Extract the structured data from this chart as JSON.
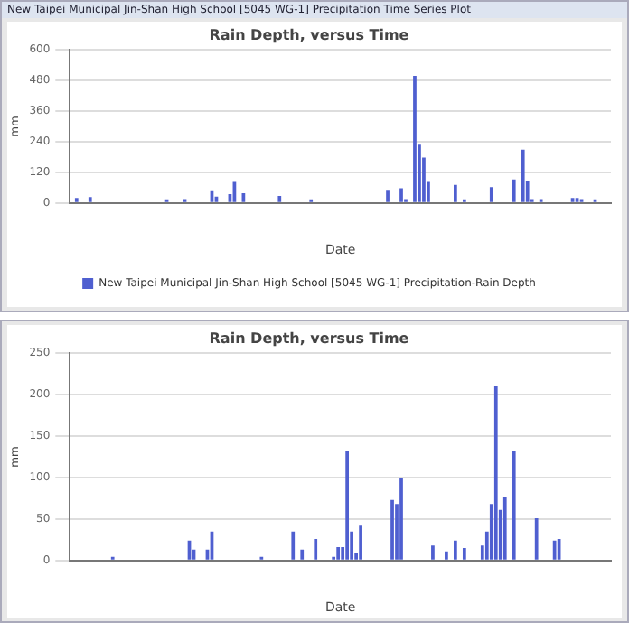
{
  "chart_data": [
    {
      "type": "bar",
      "title": "Rain Depth, versus Time",
      "xlabel": "Date",
      "ylabel": "mm",
      "annotations": [
        "New Taipei Municipal Jin-Shan High School [5045 WG-1] Precipitation Time Series Plot"
      ],
      "categories": [
        null,
        null,
        null,
        null,
        null,
        null,
        null,
        null,
        null,
        null,
        null,
        null,
        null,
        null,
        null,
        null,
        null,
        null,
        null,
        null,
        null,
        null,
        null,
        null,
        null,
        null,
        null,
        null,
        null,
        null,
        null,
        null,
        null,
        null,
        null,
        null,
        null,
        null,
        null,
        null,
        null,
        null,
        null,
        null,
        null,
        null,
        null,
        null,
        null,
        null,
        null,
        null,
        null,
        null,
        null,
        null,
        null,
        null,
        null,
        null,
        null,
        null,
        null,
        null,
        null,
        null,
        null,
        null,
        null,
        null,
        null,
        null,
        null,
        null,
        null,
        null,
        null,
        null,
        null,
        null,
        null,
        null,
        null,
        null,
        null,
        null,
        null,
        null,
        null,
        null,
        null,
        null,
        null,
        null,
        null,
        null,
        null,
        null,
        null,
        null,
        null,
        null,
        null,
        null,
        null,
        null,
        null,
        null,
        null,
        null,
        null,
        null,
        null,
        null,
        null,
        null,
        null,
        null,
        null,
        null
      ],
      "series": [
        {
          "name": "New Taipei Municipal Jin-Shan High School [5045 WG-1] Precipitation-Rain Depth",
          "color": "#4f5fd0",
          "values": [
            null,
            20,
            null,
            null,
            23,
            null,
            null,
            null,
            null,
            null,
            null,
            null,
            null,
            null,
            null,
            null,
            null,
            null,
            null,
            null,
            null,
            10,
            null,
            null,
            null,
            15,
            null,
            null,
            null,
            null,
            null,
            46,
            25,
            null,
            null,
            35,
            82,
            null,
            38,
            null,
            null,
            null,
            null,
            null,
            null,
            null,
            28,
            null,
            null,
            null,
            null,
            null,
            null,
            12,
            null,
            null,
            null,
            null,
            null,
            null,
            null,
            null,
            null,
            null,
            null,
            null,
            null,
            null,
            null,
            null,
            48,
            null,
            null,
            58,
            15,
            null,
            498,
            228,
            178,
            82,
            null,
            null,
            null,
            null,
            null,
            71,
            null,
            12,
            null,
            null,
            null,
            null,
            null,
            62,
            null,
            null,
            null,
            null,
            92,
            null,
            209,
            85,
            15,
            null,
            15,
            null,
            null,
            null,
            null,
            null,
            null,
            20,
            20,
            15,
            null,
            null,
            8,
            null,
            null,
            null
          ]
        }
      ],
      "ylim": [
        0,
        600
      ],
      "yticks": [
        0,
        120,
        240,
        360,
        480,
        600
      ],
      "grid": "y",
      "legend": "bottom"
    },
    {
      "type": "bar",
      "title": "Rain Depth, versus Time",
      "xlabel": "Date",
      "ylabel": "mm",
      "categories": [
        null,
        null,
        null,
        null,
        null,
        null,
        null,
        null,
        null,
        null,
        null,
        null,
        null,
        null,
        null,
        null,
        null,
        null,
        null,
        null,
        null,
        null,
        null,
        null,
        null,
        null,
        null,
        null,
        null,
        null,
        null,
        null,
        null,
        null,
        null,
        null,
        null,
        null,
        null,
        null,
        null,
        null,
        null,
        null,
        null,
        null,
        null,
        null,
        null,
        null,
        null,
        null,
        null,
        null,
        null,
        null,
        null,
        null,
        null,
        null,
        null,
        null,
        null,
        null,
        null,
        null,
        null,
        null,
        null,
        null,
        null,
        null,
        null,
        null,
        null,
        null,
        null,
        null,
        null,
        null,
        null,
        null,
        null,
        null,
        null,
        null,
        null,
        null,
        null,
        null,
        null,
        null,
        null,
        null,
        null,
        null,
        null,
        null,
        null,
        null,
        null,
        null,
        null,
        null,
        null,
        null,
        null,
        null,
        null,
        null,
        null,
        null,
        null,
        null,
        null,
        null,
        null,
        null,
        null,
        null
      ],
      "series": [
        {
          "color": "#4f5fd0",
          "values": [
            null,
            null,
            null,
            null,
            null,
            null,
            null,
            null,
            null,
            4,
            null,
            null,
            null,
            null,
            null,
            null,
            null,
            null,
            null,
            null,
            null,
            null,
            null,
            null,
            null,
            null,
            24,
            13,
            null,
            null,
            13,
            35,
            null,
            null,
            null,
            null,
            null,
            null,
            null,
            null,
            null,
            null,
            4,
            null,
            null,
            null,
            null,
            null,
            null,
            35,
            null,
            13,
            null,
            null,
            26,
            null,
            null,
            null,
            4,
            16,
            16,
            132,
            35,
            9,
            42,
            null,
            null,
            null,
            null,
            null,
            null,
            73,
            68,
            99,
            null,
            null,
            null,
            null,
            null,
            null,
            18,
            null,
            null,
            11,
            null,
            24,
            null,
            15,
            null,
            null,
            null,
            18,
            35,
            68,
            211,
            61,
            76,
            null,
            132,
            null,
            null,
            null,
            null,
            51,
            null,
            null,
            null,
            24,
            26,
            null,
            null,
            null,
            null,
            null,
            null,
            null,
            null,
            null,
            null,
            null
          ]
        }
      ],
      "ylim": [
        0,
        250
      ],
      "yticks": [
        0,
        50,
        100,
        150,
        200,
        250
      ],
      "grid": "y",
      "legend": false
    }
  ]
}
